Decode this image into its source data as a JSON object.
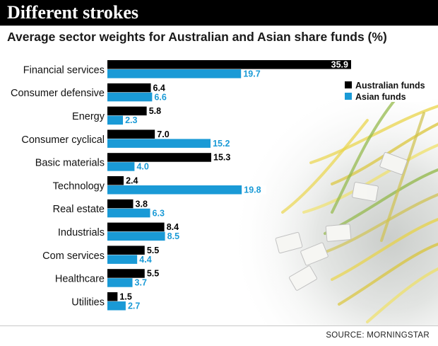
{
  "header": {
    "title": "Different strokes",
    "subtitle": "Average sector weights for Australian and Asian share funds (%)"
  },
  "footer": {
    "source": "SOURCE: MORNINGSTAR"
  },
  "colors": {
    "australian": "#000000",
    "asian": "#1a9ad6",
    "label_box": "#ffffff"
  },
  "chart_data": {
    "type": "bar",
    "orientation": "horizontal",
    "categories": [
      "Financial services",
      "Consumer defensive",
      "Energy",
      "Consumer cyclical",
      "Basic materials",
      "Technology",
      "Real estate",
      "Industrials",
      "Com services",
      "Healthcare",
      "Utilities"
    ],
    "series": [
      {
        "name": "Australian funds",
        "values": [
          35.9,
          6.4,
          5.8,
          7.0,
          15.3,
          2.4,
          3.8,
          8.4,
          5.5,
          5.5,
          1.5
        ]
      },
      {
        "name": "Asian funds",
        "values": [
          19.7,
          6.6,
          2.3,
          15.2,
          4.0,
          19.8,
          6.3,
          8.5,
          4.4,
          3.7,
          2.7
        ]
      }
    ],
    "data_labels": [
      [
        "35.9",
        "6.4",
        "5.8",
        "7.0",
        "15.3",
        "2.4",
        "3.8",
        "8.4",
        "5.5",
        "5.5",
        "1.5"
      ],
      [
        "19.7",
        "6.6",
        "2.3",
        "15.2",
        "4.0",
        "19.8",
        "6.3",
        "8.5",
        "4.4",
        "3.7",
        "2.7"
      ]
    ],
    "xlim": [
      0,
      36
    ],
    "legend_position": "top-right",
    "grid": false
  }
}
